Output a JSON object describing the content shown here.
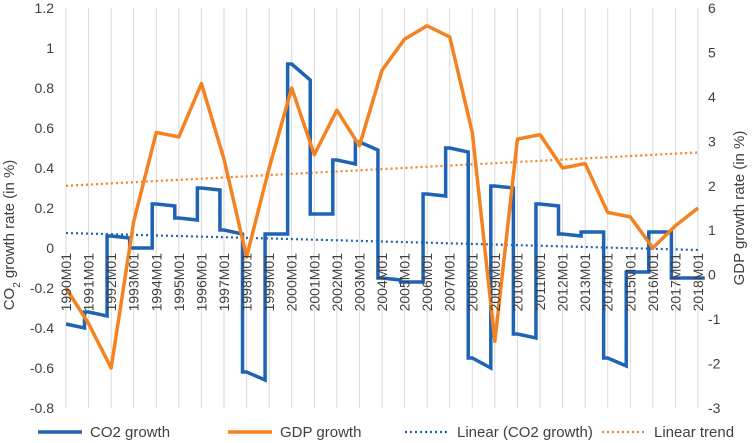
{
  "chart_data": {
    "type": "line",
    "title": "",
    "x_labels": [
      "1990M01",
      "1991M01",
      "1992M01",
      "1993M01",
      "1994M01",
      "1995M01",
      "1996M01",
      "1997M01",
      "1998M01",
      "1999M01",
      "2000M01",
      "2001M01",
      "2002M01",
      "2003M01",
      "2004M01",
      "2005M01",
      "2006M01",
      "2007M01",
      "2008M01",
      "2009M01",
      "2010M01",
      "2011M01",
      "2012M01",
      "2013M01",
      "2014M01",
      "2015M01",
      "2016M01",
      "2017M01",
      "2018M01"
    ],
    "ylabel_left": "CO₂ growth rate (in %)",
    "ylabel_left_main": "CO",
    "ylabel_left_sub": "2",
    "ylabel_left_rest": " growth rate (in %)",
    "ylabel_right": "GDP growth rate (in %)",
    "ylim_left": [
      -0.8,
      1.2
    ],
    "ylim_right": [
      -3,
      6
    ],
    "yticks_left": [
      "-0.8",
      "-0.6",
      "-0.4",
      "-0.2",
      "0",
      "0.2",
      "0.4",
      "0.6",
      "0.8",
      "1",
      "1.2"
    ],
    "yticks_right": [
      "-3",
      "-2",
      "-1",
      "0",
      "1",
      "2",
      "3",
      "4",
      "5",
      "6"
    ],
    "grid": "vertical",
    "legend_position": "bottom",
    "series": [
      {
        "name": "CO2 growth",
        "axis": "left",
        "style": "step",
        "color": "#1f63b4",
        "values": [
          -0.38,
          -0.32,
          0.06,
          0.0,
          0.22,
          0.15,
          0.3,
          0.09,
          -0.62,
          0.07,
          0.92,
          0.17,
          0.44,
          0.53,
          -0.15,
          -0.17,
          0.27,
          0.5,
          -0.55,
          0.31,
          -0.43,
          0.22,
          0.07,
          0.08,
          -0.55,
          -0.12,
          0.08,
          -0.15,
          -0.15
        ],
        "jumps": [
          -0.4,
          -0.34,
          0.05,
          0.0,
          0.21,
          0.14,
          0.29,
          0.07,
          -0.66,
          0.07,
          0.84,
          0.17,
          0.42,
          0.49,
          -0.16,
          -0.17,
          0.26,
          0.48,
          -0.6,
          0.3,
          -0.45,
          0.21,
          0.06,
          0.08,
          -0.59,
          -0.12,
          0.08,
          -0.15,
          -0.15
        ]
      },
      {
        "name": "GDP growth",
        "axis": "right",
        "style": "line",
        "color": "#f58220",
        "values": [
          -0.3,
          -1.1,
          -2.1,
          1.2,
          3.2,
          3.1,
          4.3,
          2.6,
          0.4,
          2.4,
          4.2,
          2.7,
          3.7,
          2.9,
          4.6,
          5.3,
          5.6,
          5.35,
          3.2,
          -1.5,
          3.05,
          3.15,
          2.4,
          2.5,
          1.4,
          1.3,
          0.6,
          1.1,
          1.5
        ]
      },
      {
        "name": "Linear (CO2 growth)",
        "axis": "left",
        "style": "dotted",
        "color": "#1f63b4",
        "values": [
          0.075,
          -0.01
        ]
      },
      {
        "name": "Linear trend",
        "axis": "right",
        "style": "dotted",
        "color": "#f58220",
        "values": [
          2.0,
          2.75
        ]
      }
    ]
  }
}
